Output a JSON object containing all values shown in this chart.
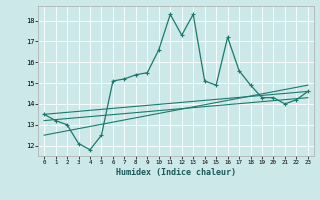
{
  "xlabel": "Humidex (Indice chaleur)",
  "background_color": "#cce8e8",
  "line_color": "#1a7a6e",
  "grid_color": "#ffffff",
  "xlim": [
    -0.5,
    23.5
  ],
  "ylim": [
    11.5,
    18.7
  ],
  "yticks": [
    12,
    13,
    14,
    15,
    16,
    17,
    18
  ],
  "xticks": [
    0,
    1,
    2,
    3,
    4,
    5,
    6,
    7,
    8,
    9,
    10,
    11,
    12,
    13,
    14,
    15,
    16,
    17,
    18,
    19,
    20,
    21,
    22,
    23
  ],
  "main_line": {
    "x": [
      0,
      1,
      2,
      3,
      4,
      5,
      6,
      7,
      8,
      9,
      10,
      11,
      12,
      13,
      14,
      15,
      16,
      17,
      18,
      19,
      20,
      21,
      22,
      23
    ],
    "y": [
      13.5,
      13.2,
      13.0,
      12.1,
      11.8,
      12.5,
      15.1,
      15.2,
      15.4,
      15.5,
      16.6,
      18.3,
      17.3,
      18.3,
      15.1,
      14.9,
      17.2,
      15.6,
      14.9,
      14.3,
      14.3,
      14.0,
      14.2,
      14.6
    ]
  },
  "trend_lines": [
    {
      "x": [
        0,
        23
      ],
      "y": [
        13.5,
        14.6
      ]
    },
    {
      "x": [
        0,
        23
      ],
      "y": [
        13.2,
        14.3
      ]
    },
    {
      "x": [
        0,
        23
      ],
      "y": [
        12.5,
        14.9
      ]
    }
  ]
}
